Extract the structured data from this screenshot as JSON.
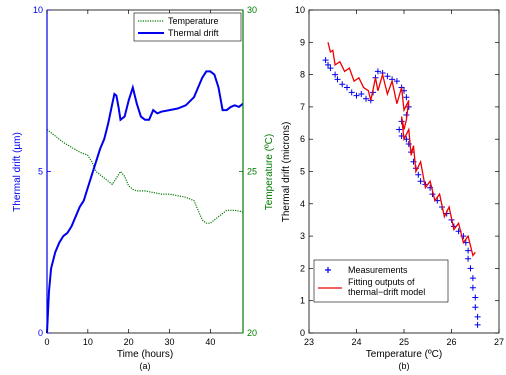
{
  "chart_data": [
    {
      "type": "line",
      "panel_label": "(a)",
      "xlabel": "Time (hours)",
      "ylabel_left": "Thermal drift (µm)",
      "ylabel_right": "Temperature (ºC)",
      "xlim": [
        0,
        48
      ],
      "ylim_left": [
        0,
        10
      ],
      "ylim_right": [
        20,
        30
      ],
      "xticks": [
        "0",
        "10",
        "20",
        "30",
        "40"
      ],
      "yticks_left": [
        "0",
        "5",
        "10"
      ],
      "yticks_right": [
        "20",
        "25",
        "30"
      ],
      "legend_position": "top-right",
      "colors": {
        "thermal_drift": "#0000ee",
        "temperature": "#007a00",
        "left_axis": "#0000ee",
        "right_axis": "#007a00"
      },
      "series": [
        {
          "name": "Temperature",
          "axis": "right",
          "style": "dotted",
          "x": [
            0,
            2,
            4,
            6,
            8,
            10,
            11,
            12,
            13,
            14,
            15,
            16,
            17,
            18,
            19,
            20,
            21,
            22,
            24,
            26,
            28,
            30,
            32,
            34,
            36,
            37,
            38,
            39,
            40,
            41,
            42,
            44,
            46,
            48
          ],
          "y": [
            26.3,
            26.1,
            25.9,
            25.75,
            25.6,
            25.5,
            25.3,
            25.0,
            24.9,
            24.8,
            24.7,
            24.6,
            24.8,
            25.0,
            24.85,
            24.55,
            24.45,
            24.4,
            24.4,
            24.35,
            24.3,
            24.3,
            24.25,
            24.2,
            24.1,
            23.8,
            23.5,
            23.4,
            23.4,
            23.5,
            23.6,
            23.8,
            23.8,
            23.75
          ]
        },
        {
          "name": "Thermal drift",
          "axis": "left",
          "style": "solid",
          "x": [
            0,
            0.5,
            1,
            2,
            3,
            4,
            5,
            6,
            7,
            8,
            9,
            10,
            11,
            12,
            13,
            14,
            15,
            16,
            16.5,
            17,
            17.5,
            18,
            19,
            20,
            21,
            22,
            23,
            24,
            25,
            26,
            27,
            28,
            30,
            32,
            34,
            36,
            37,
            38,
            39,
            40,
            41,
            42,
            43,
            44,
            45,
            46,
            47,
            48
          ],
          "y": [
            0,
            1.3,
            2.0,
            2.5,
            2.8,
            3.0,
            3.1,
            3.3,
            3.6,
            3.9,
            4.1,
            4.5,
            4.9,
            5.3,
            5.7,
            6.0,
            6.5,
            7.1,
            7.4,
            7.35,
            7.0,
            6.6,
            6.7,
            7.2,
            7.6,
            7.1,
            6.7,
            6.6,
            6.6,
            6.9,
            6.8,
            6.85,
            6.9,
            6.95,
            7.05,
            7.3,
            7.6,
            7.9,
            8.1,
            8.1,
            8.0,
            7.6,
            6.9,
            6.9,
            7.0,
            7.05,
            7.0,
            7.1
          ]
        }
      ]
    },
    {
      "type": "scatter",
      "panel_label": "(b)",
      "xlabel": "Temperature (ºC)",
      "ylabel": "Thermal drift (microns)",
      "xlim": [
        23,
        27
      ],
      "ylim": [
        0,
        10
      ],
      "xticks": [
        "23",
        "24",
        "25",
        "26",
        "27"
      ],
      "yticks": [
        "0",
        "1",
        "2",
        "3",
        "4",
        "5",
        "6",
        "7",
        "8",
        "9",
        "10"
      ],
      "legend_position": "bottom-left",
      "colors": {
        "measurements": "#0000ee",
        "fit": "#ee0000"
      },
      "series": [
        {
          "name": "Measurements",
          "marker": "+",
          "points": [
            [
              23.35,
              8.45
            ],
            [
              23.4,
              8.3
            ],
            [
              23.45,
              8.2
            ],
            [
              23.55,
              8.0
            ],
            [
              23.6,
              7.85
            ],
            [
              23.7,
              7.7
            ],
            [
              23.8,
              7.6
            ],
            [
              23.9,
              7.45
            ],
            [
              24.0,
              7.35
            ],
            [
              24.1,
              7.4
            ],
            [
              24.2,
              7.25
            ],
            [
              24.3,
              7.2
            ],
            [
              24.35,
              7.45
            ],
            [
              24.4,
              7.9
            ],
            [
              24.45,
              8.1
            ],
            [
              24.55,
              8.05
            ],
            [
              24.65,
              7.95
            ],
            [
              24.75,
              7.85
            ],
            [
              24.85,
              7.8
            ],
            [
              24.95,
              7.6
            ],
            [
              25.0,
              7.5
            ],
            [
              25.05,
              7.3
            ],
            [
              25.1,
              7.0
            ],
            [
              25.05,
              6.75
            ],
            [
              24.95,
              6.55
            ],
            [
              24.9,
              6.3
            ],
            [
              24.95,
              6.1
            ],
            [
              25.05,
              6.0
            ],
            [
              25.1,
              5.85
            ],
            [
              25.15,
              5.6
            ],
            [
              25.2,
              5.3
            ],
            [
              25.25,
              5.1
            ],
            [
              25.3,
              4.9
            ],
            [
              25.35,
              4.7
            ],
            [
              25.45,
              4.6
            ],
            [
              25.55,
              4.5
            ],
            [
              25.6,
              4.3
            ],
            [
              25.7,
              4.1
            ],
            [
              25.8,
              3.9
            ],
            [
              25.9,
              3.7
            ],
            [
              26.0,
              3.5
            ],
            [
              26.05,
              3.3
            ],
            [
              26.15,
              3.15
            ],
            [
              26.25,
              3.0
            ],
            [
              26.3,
              2.8
            ],
            [
              26.35,
              2.55
            ],
            [
              26.35,
              2.3
            ],
            [
              26.4,
              2.0
            ],
            [
              26.45,
              1.7
            ],
            [
              26.45,
              1.4
            ],
            [
              26.5,
              1.1
            ],
            [
              26.5,
              0.8
            ],
            [
              26.55,
              0.5
            ],
            [
              26.55,
              0.25
            ]
          ]
        },
        {
          "name": "Fitting outputs of thermal−drift model",
          "style": "solid",
          "x": [
            23.4,
            23.45,
            23.5,
            23.55,
            23.65,
            23.75,
            23.85,
            23.95,
            24.05,
            24.15,
            24.25,
            24.3,
            24.4,
            24.45,
            24.55,
            24.65,
            24.75,
            24.85,
            24.95,
            25.0,
            25.1,
            25.05,
            25.0,
            24.95,
            25.0,
            25.1,
            25.15,
            25.2,
            25.25,
            25.35,
            25.45,
            25.55,
            25.65,
            25.75,
            25.85,
            25.95,
            26.05,
            26.15,
            26.25,
            26.35,
            26.45,
            26.5
          ],
          "y": [
            9.0,
            8.7,
            8.75,
            8.3,
            8.4,
            8.1,
            8.2,
            7.8,
            7.9,
            7.6,
            7.5,
            7.2,
            7.9,
            7.5,
            8.0,
            7.4,
            7.8,
            7.1,
            7.6,
            6.9,
            7.2,
            6.6,
            6.3,
            6.7,
            6.0,
            6.3,
            5.5,
            5.8,
            5.0,
            5.3,
            4.5,
            4.7,
            4.1,
            4.3,
            3.6,
            3.9,
            3.2,
            3.4,
            2.8,
            3.0,
            2.4,
            2.5
          ]
        }
      ]
    }
  ]
}
